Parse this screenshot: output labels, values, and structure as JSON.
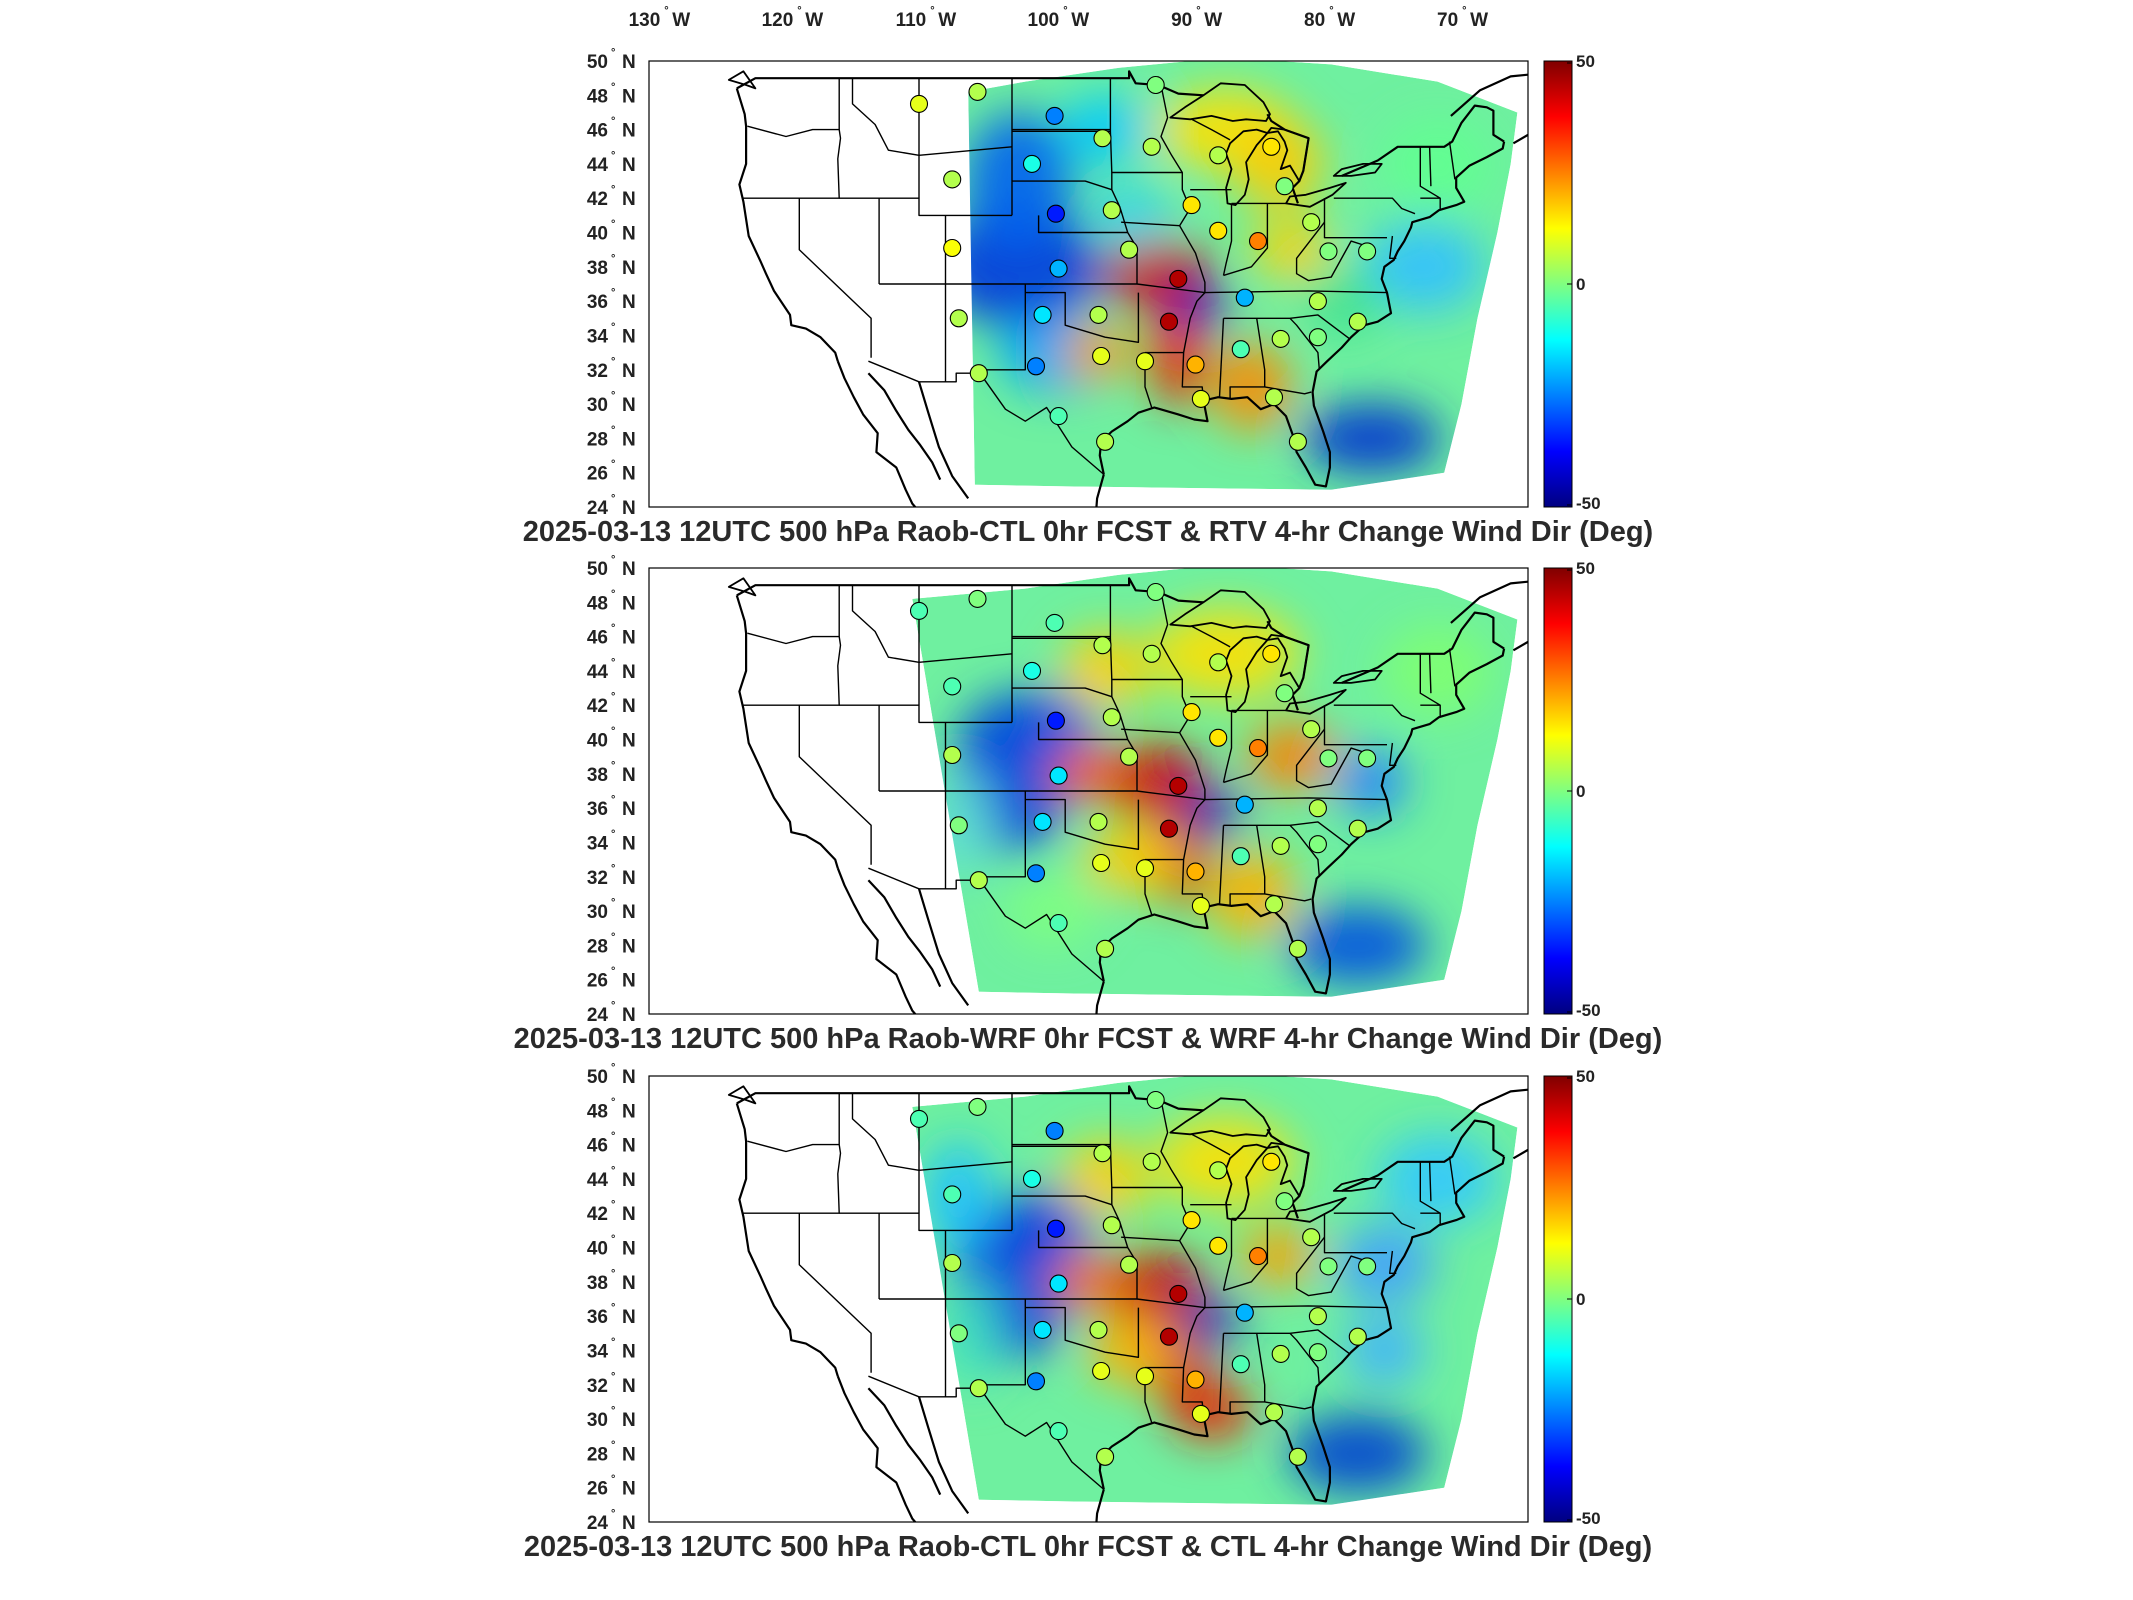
{
  "lon_ticks": [
    {
      "value": -130,
      "deg": "130",
      "hemi": "W"
    },
    {
      "value": -120,
      "deg": "120",
      "hemi": "W"
    },
    {
      "value": -110,
      "deg": "110",
      "hemi": "W"
    },
    {
      "value": -100,
      "deg": "100",
      "hemi": "W"
    },
    {
      "value": -90,
      "deg": "90",
      "hemi": "W"
    },
    {
      "value": -80,
      "deg": "80",
      "hemi": "W"
    },
    {
      "value": -70,
      "deg": "70",
      "hemi": "W"
    }
  ],
  "lat_ticks": [
    {
      "value": 50,
      "deg": "50",
      "hemi": "N"
    },
    {
      "value": 48,
      "deg": "48",
      "hemi": "N"
    },
    {
      "value": 46,
      "deg": "46",
      "hemi": "N"
    },
    {
      "value": 44,
      "deg": "44",
      "hemi": "N"
    },
    {
      "value": 42,
      "deg": "42",
      "hemi": "N"
    },
    {
      "value": 40,
      "deg": "40",
      "hemi": "N"
    },
    {
      "value": 38,
      "deg": "38",
      "hemi": "N"
    },
    {
      "value": 36,
      "deg": "36",
      "hemi": "N"
    },
    {
      "value": 34,
      "deg": "34",
      "hemi": "N"
    },
    {
      "value": 32,
      "deg": "32",
      "hemi": "N"
    },
    {
      "value": 30,
      "deg": "30",
      "hemi": "N"
    },
    {
      "value": 28,
      "deg": "28",
      "hemi": "N"
    },
    {
      "value": 26,
      "deg": "26",
      "hemi": "N"
    },
    {
      "value": 24,
      "deg": "24",
      "hemi": "N"
    }
  ],
  "colorbar": {
    "min": -50,
    "max": 50,
    "tick_labels": [
      "50",
      "0",
      "-50"
    ],
    "colors": [
      "#800000",
      "#ff0000",
      "#ff8000",
      "#ffff00",
      "#80ff80",
      "#00ffff",
      "#0080ff",
      "#0000ff",
      "#000080"
    ]
  },
  "panels": [
    {
      "title": "2025-03-13 12UTC 500 hPa Raob-CTL 0hr FCST & RTV 4-hr Change Wind Dir (Deg)"
    },
    {
      "title": "2025-03-13 12UTC 500 hPa Raob-WRF 0hr FCST & WRF 4-hr Change Wind Dir (Deg)"
    },
    {
      "title": "2025-03-13 12UTC 500 hPa Raob-CTL 0hr FCST & CTL 4-hr Change Wind Dir (Deg)"
    }
  ],
  "stations": [
    {
      "lon": -111,
      "lat": 47.5,
      "v": [
        10,
        -5,
        -5
      ]
    },
    {
      "lon": -106.6,
      "lat": 48.2,
      "v": [
        5,
        0,
        0
      ]
    },
    {
      "lon": -100.8,
      "lat": 46.8,
      "v": [
        -25,
        -5,
        -25
      ]
    },
    {
      "lon": -97.2,
      "lat": 45.5,
      "v": [
        5,
        5,
        5
      ]
    },
    {
      "lon": -93.2,
      "lat": 48.6,
      "v": [
        0,
        0,
        0
      ]
    },
    {
      "lon": -93.5,
      "lat": 45.0,
      "v": [
        5,
        5,
        5
      ]
    },
    {
      "lon": -88.5,
      "lat": 44.5,
      "v": [
        5,
        5,
        5
      ]
    },
    {
      "lon": -84.5,
      "lat": 45.0,
      "v": [
        15,
        15,
        15
      ]
    },
    {
      "lon": -83.5,
      "lat": 42.7,
      "v": [
        0,
        0,
        0
      ]
    },
    {
      "lon": -102.5,
      "lat": 44.0,
      "v": [
        -10,
        -10,
        -10
      ]
    },
    {
      "lon": -108.5,
      "lat": 43.1,
      "v": [
        5,
        -5,
        -5
      ]
    },
    {
      "lon": -100.7,
      "lat": 41.1,
      "v": [
        -35,
        -35,
        -35
      ]
    },
    {
      "lon": -96.5,
      "lat": 41.3,
      "v": [
        5,
        5,
        5
      ]
    },
    {
      "lon": -90.5,
      "lat": 41.6,
      "v": [
        15,
        15,
        15
      ]
    },
    {
      "lon": -88.5,
      "lat": 40.1,
      "v": [
        15,
        15,
        15
      ]
    },
    {
      "lon": -85.5,
      "lat": 39.5,
      "v": [
        25,
        25,
        25
      ]
    },
    {
      "lon": -81.5,
      "lat": 40.6,
      "v": [
        5,
        5,
        5
      ]
    },
    {
      "lon": -80.2,
      "lat": 38.9,
      "v": [
        0,
        0,
        0
      ]
    },
    {
      "lon": -77.3,
      "lat": 38.9,
      "v": [
        0,
        0,
        0
      ]
    },
    {
      "lon": -108.5,
      "lat": 39.1,
      "v": [
        12,
        5,
        5
      ]
    },
    {
      "lon": -100.5,
      "lat": 37.9,
      "v": [
        -20,
        -15,
        -15
      ]
    },
    {
      "lon": -95.2,
      "lat": 39.0,
      "v": [
        5,
        5,
        5
      ]
    },
    {
      "lon": -91.5,
      "lat": 37.3,
      "v": [
        45,
        45,
        45
      ]
    },
    {
      "lon": -86.5,
      "lat": 36.2,
      "v": [
        -20,
        -20,
        -20
      ]
    },
    {
      "lon": -81.0,
      "lat": 36.0,
      "v": [
        5,
        5,
        5
      ]
    },
    {
      "lon": -108.0,
      "lat": 35.0,
      "v": [
        5,
        0,
        0
      ]
    },
    {
      "lon": -101.7,
      "lat": 35.2,
      "v": [
        -15,
        -15,
        -15
      ]
    },
    {
      "lon": -97.5,
      "lat": 35.2,
      "v": [
        5,
        5,
        5
      ]
    },
    {
      "lon": -92.2,
      "lat": 34.8,
      "v": [
        45,
        45,
        45
      ]
    },
    {
      "lon": -86.8,
      "lat": 33.2,
      "v": [
        -5,
        -5,
        -5
      ]
    },
    {
      "lon": -83.8,
      "lat": 33.8,
      "v": [
        5,
        5,
        5
      ]
    },
    {
      "lon": -81.0,
      "lat": 33.9,
      "v": [
        0,
        0,
        0
      ]
    },
    {
      "lon": -78.0,
      "lat": 34.8,
      "v": [
        5,
        5,
        5
      ]
    },
    {
      "lon": -106.5,
      "lat": 31.8,
      "v": [
        5,
        5,
        5
      ]
    },
    {
      "lon": -102.2,
      "lat": 32.2,
      "v": [
        -25,
        -25,
        -25
      ]
    },
    {
      "lon": -97.3,
      "lat": 32.8,
      "v": [
        10,
        10,
        10
      ]
    },
    {
      "lon": -94.0,
      "lat": 32.5,
      "v": [
        10,
        10,
        10
      ]
    },
    {
      "lon": -90.2,
      "lat": 32.3,
      "v": [
        20,
        20,
        20
      ]
    },
    {
      "lon": -89.8,
      "lat": 30.3,
      "v": [
        10,
        10,
        10
      ]
    },
    {
      "lon": -84.3,
      "lat": 30.4,
      "v": [
        5,
        5,
        5
      ]
    },
    {
      "lon": -100.5,
      "lat": 29.3,
      "v": [
        -5,
        -5,
        -5
      ]
    },
    {
      "lon": -97.0,
      "lat": 27.8,
      "v": [
        5,
        5,
        5
      ]
    },
    {
      "lon": -82.5,
      "lat": 27.8,
      "v": [
        5,
        5,
        5
      ]
    }
  ]
}
